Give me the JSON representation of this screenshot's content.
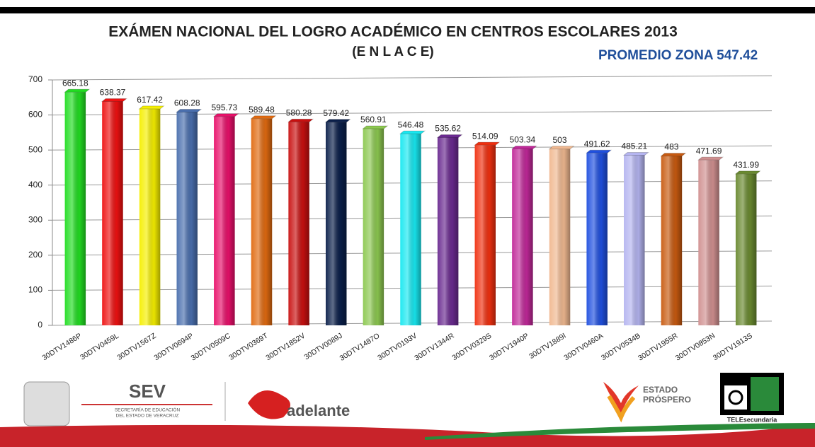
{
  "chart_data": {
    "type": "bar",
    "title": "EXÁMEN NACIONAL DEL LOGRO ACADÉMICO EN CENTROS ESCOLARES 2013",
    "subtitle": "(E N L A C E)",
    "annotation": "PROMEDIO ZONA 547.42",
    "categories": [
      "30DTV1486P",
      "30DTV0459L",
      "30DTV1567Z",
      "30DTV0694P",
      "30DTV0509C",
      "30DTV0369T",
      "30DTV1852V",
      "30DTV0089J",
      "30DTV1487O",
      "30DTV0193V",
      "30DTV1344R",
      "30DTV0329S",
      "30DTV1940P",
      "30DTV1889I",
      "30DTV0460A",
      "30DTV0534B",
      "30DTV1955R",
      "30DTV0853N",
      "30DTV1913S"
    ],
    "values": [
      665.18,
      638.37,
      617.42,
      608.28,
      595.73,
      589.48,
      580.28,
      579.42,
      560.91,
      546.48,
      535.62,
      514.09,
      503.34,
      503,
      491.62,
      485.21,
      483,
      471.69,
      431.99
    ],
    "colors": [
      "#22dd22",
      "#ee1111",
      "#f5ef00",
      "#4a6fae",
      "#e8106a",
      "#e06a10",
      "#c81010",
      "#0a1f4a",
      "#8cc850",
      "#18e8f0",
      "#6a2a90",
      "#f03010",
      "#c02898",
      "#f0b890",
      "#2050e0",
      "#b4b4f0",
      "#c85a10",
      "#d09090",
      "#6a8a30"
    ],
    "ylim": [
      0,
      700
    ],
    "yticks": [
      0,
      100,
      200,
      300,
      400,
      500,
      600,
      700
    ],
    "grid": true
  },
  "footer": {
    "sev": "SEV",
    "sev_sub1": "SECRETARÍA DE EDUCACIÓN",
    "sev_sub2": "DEL ESTADO DE VERACRUZ",
    "adelante": "adelante",
    "estado1": "ESTADO",
    "estado2": "PRÓSPERO",
    "tele": "TELEsecundaria"
  }
}
